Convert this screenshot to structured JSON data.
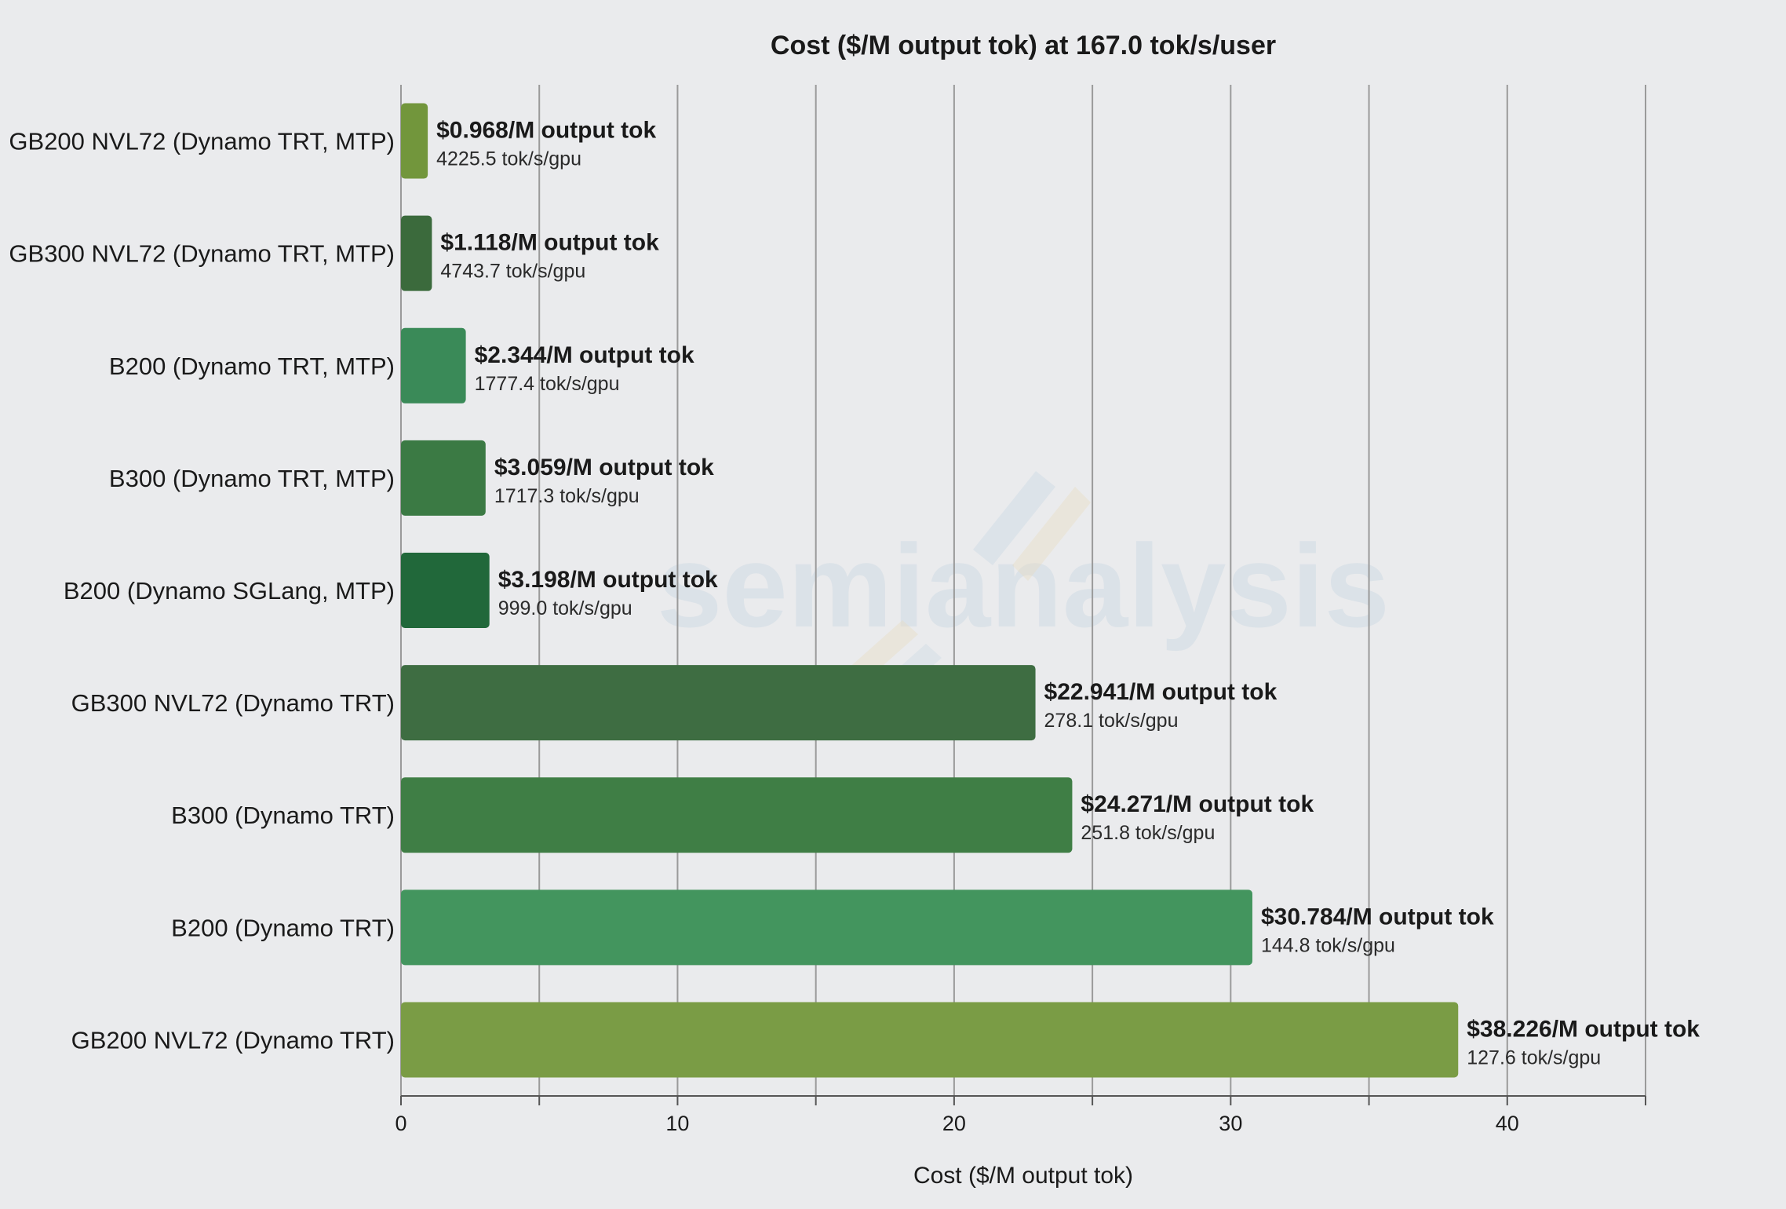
{
  "chart_data": {
    "type": "bar",
    "orientation": "horizontal",
    "title": "Cost ($/M output tok) at 167.0 tok/s/user",
    "xlabel": "Cost ($/M output tok)",
    "ylabel": "",
    "xlim": [
      0,
      45
    ],
    "xticks": [
      0,
      10,
      20,
      30,
      40
    ],
    "grid_step": 5,
    "grid": true,
    "legend": "none",
    "watermark": "semianalysis",
    "categories": [
      "GB200 NVL72 (Dynamo TRT, MTP)",
      "GB300 NVL72 (Dynamo TRT, MTP)",
      "B200 (Dynamo TRT, MTP)",
      "B300 (Dynamo TRT, MTP)",
      "B200 (Dynamo SGLang, MTP)",
      "GB300 NVL72 (Dynamo TRT)",
      "B300 (Dynamo TRT)",
      "B200 (Dynamo TRT)",
      "GB200 NVL72 (Dynamo TRT)"
    ],
    "values": [
      0.968,
      1.118,
      2.344,
      3.059,
      3.198,
      22.941,
      24.271,
      30.784,
      38.226
    ],
    "value_labels": [
      "$0.968/M output tok",
      "$1.118/M output tok",
      "$2.344/M output tok",
      "$3.059/M output tok",
      "$3.198/M output tok",
      "$22.941/M output tok",
      "$24.271/M output tok",
      "$30.784/M output tok",
      "$38.226/M output tok"
    ],
    "throughput_labels": [
      "4225.5 tok/s/gpu",
      "4743.7 tok/s/gpu",
      "1777.4 tok/s/gpu",
      "1717.3 tok/s/gpu",
      "999.0 tok/s/gpu",
      "278.1 tok/s/gpu",
      "251.8 tok/s/gpu",
      "144.8 tok/s/gpu",
      "127.6 tok/s/gpu"
    ],
    "colors": [
      "#72963c",
      "#3b6a3c",
      "#3a8a58",
      "#3b7a44",
      "#21683a",
      "#3e6d42",
      "#3f7e45",
      "#43955e",
      "#7a9c45"
    ]
  }
}
